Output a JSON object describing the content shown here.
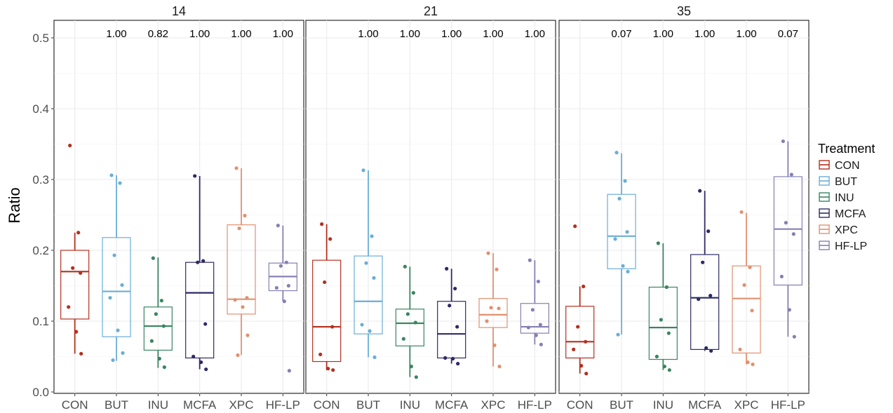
{
  "chart_data": {
    "type": "box",
    "ylabel": "Ratio",
    "xlabel": "",
    "ylim": [
      0,
      0.52
    ],
    "yticks": [
      0.0,
      0.1,
      0.2,
      0.3,
      0.4,
      0.5
    ],
    "ytick_labels": [
      "0.0",
      "0.1",
      "0.2",
      "0.3",
      "0.4",
      "0.5"
    ],
    "grid": true,
    "legend": {
      "title": "Treatment",
      "placement": "right",
      "entries": [
        "CON",
        "BUT",
        "INU",
        "MCFA",
        "XPC",
        "HF-LP"
      ]
    },
    "categories": [
      "CON",
      "BUT",
      "INU",
      "MCFA",
      "XPC",
      "HF-LP"
    ],
    "colors": {
      "CON": "#B5301F",
      "BUT": "#6AAED6",
      "INU": "#3A8562",
      "MCFA": "#2E2A66",
      "XPC": "#E09170",
      "HF-LP": "#8580B3"
    },
    "panels": [
      {
        "title": "14",
        "annotations": [
          "",
          "1.00",
          "0.82",
          "1.00",
          "1.00",
          "1.00"
        ],
        "boxes": [
          {
            "q1": 0.103,
            "median": 0.17,
            "q3": 0.2,
            "lower": 0.054,
            "upper": 0.225
          },
          {
            "q1": 0.078,
            "median": 0.142,
            "q3": 0.218,
            "lower": 0.044,
            "upper": 0.306
          },
          {
            "q1": 0.059,
            "median": 0.093,
            "q3": 0.12,
            "lower": 0.034,
            "upper": 0.19
          },
          {
            "q1": 0.048,
            "median": 0.14,
            "q3": 0.183,
            "lower": 0.032,
            "upper": 0.305
          },
          {
            "q1": 0.11,
            "median": 0.131,
            "q3": 0.236,
            "lower": 0.052,
            "upper": 0.316
          },
          {
            "q1": 0.143,
            "median": 0.163,
            "q3": 0.182,
            "lower": 0.128,
            "upper": 0.235
          }
        ],
        "points": [
          [
            0.348,
            0.225,
            0.175,
            0.168,
            0.12,
            0.085,
            0.054
          ],
          [
            0.306,
            0.295,
            0.193,
            0.151,
            0.133,
            0.087,
            0.055,
            0.045
          ],
          [
            0.189,
            0.129,
            0.11,
            0.093,
            0.072,
            0.047,
            0.035
          ],
          [
            0.305,
            0.185,
            0.183,
            0.096,
            0.05,
            0.042,
            0.032
          ],
          [
            0.316,
            0.249,
            0.231,
            0.133,
            0.13,
            0.12,
            0.08,
            0.052
          ],
          [
            0.235,
            0.183,
            0.178,
            0.15,
            0.147,
            0.128,
            0.03
          ]
        ]
      },
      {
        "title": "21",
        "annotations": [
          "",
          "1.00",
          "1.00",
          "1.00",
          "1.00",
          "1.00"
        ],
        "boxes": [
          {
            "q1": 0.043,
            "median": 0.092,
            "q3": 0.186,
            "lower": 0.031,
            "upper": 0.237
          },
          {
            "q1": 0.082,
            "median": 0.128,
            "q3": 0.192,
            "lower": 0.049,
            "upper": 0.313
          },
          {
            "q1": 0.065,
            "median": 0.097,
            "q3": 0.117,
            "lower": 0.021,
            "upper": 0.177
          },
          {
            "q1": 0.048,
            "median": 0.082,
            "q3": 0.128,
            "lower": 0.04,
            "upper": 0.174
          },
          {
            "q1": 0.091,
            "median": 0.109,
            "q3": 0.132,
            "lower": 0.036,
            "upper": 0.196
          },
          {
            "q1": 0.083,
            "median": 0.092,
            "q3": 0.125,
            "lower": 0.067,
            "upper": 0.186
          }
        ],
        "points": [
          [
            0.237,
            0.216,
            0.155,
            0.092,
            0.053,
            0.033,
            0.031
          ],
          [
            0.313,
            0.22,
            0.182,
            0.161,
            0.095,
            0.086,
            0.049
          ],
          [
            0.177,
            0.14,
            0.11,
            0.098,
            0.075,
            0.036,
            0.021
          ],
          [
            0.174,
            0.146,
            0.122,
            0.092,
            0.048,
            0.047,
            0.04
          ],
          [
            0.196,
            0.173,
            0.119,
            0.118,
            0.1,
            0.066,
            0.036
          ],
          [
            0.186,
            0.156,
            0.116,
            0.095,
            0.091,
            0.08,
            0.067
          ]
        ]
      },
      {
        "title": "35",
        "annotations": [
          "",
          "0.07",
          "1.00",
          "1.00",
          "1.00",
          "0.07"
        ],
        "boxes": [
          {
            "q1": 0.048,
            "median": 0.071,
            "q3": 0.121,
            "lower": 0.026,
            "upper": 0.149
          },
          {
            "q1": 0.174,
            "median": 0.22,
            "q3": 0.279,
            "lower": 0.081,
            "upper": 0.337
          },
          {
            "q1": 0.046,
            "median": 0.091,
            "q3": 0.148,
            "lower": 0.031,
            "upper": 0.21
          },
          {
            "q1": 0.06,
            "median": 0.133,
            "q3": 0.194,
            "lower": 0.058,
            "upper": 0.284
          },
          {
            "q1": 0.055,
            "median": 0.132,
            "q3": 0.178,
            "lower": 0.039,
            "upper": 0.253
          },
          {
            "q1": 0.151,
            "median": 0.23,
            "q3": 0.304,
            "lower": 0.078,
            "upper": 0.354
          }
        ],
        "points": [
          [
            0.234,
            0.149,
            0.092,
            0.071,
            0.06,
            0.037,
            0.026
          ],
          [
            0.338,
            0.298,
            0.273,
            0.226,
            0.216,
            0.178,
            0.17,
            0.081
          ],
          [
            0.21,
            0.148,
            0.102,
            0.083,
            0.05,
            0.036,
            0.031
          ],
          [
            0.284,
            0.227,
            0.183,
            0.136,
            0.131,
            0.062,
            0.058
          ],
          [
            0.254,
            0.176,
            0.151,
            0.115,
            0.06,
            0.042,
            0.039
          ],
          [
            0.354,
            0.307,
            0.239,
            0.223,
            0.163,
            0.116,
            0.078
          ]
        ]
      }
    ]
  }
}
